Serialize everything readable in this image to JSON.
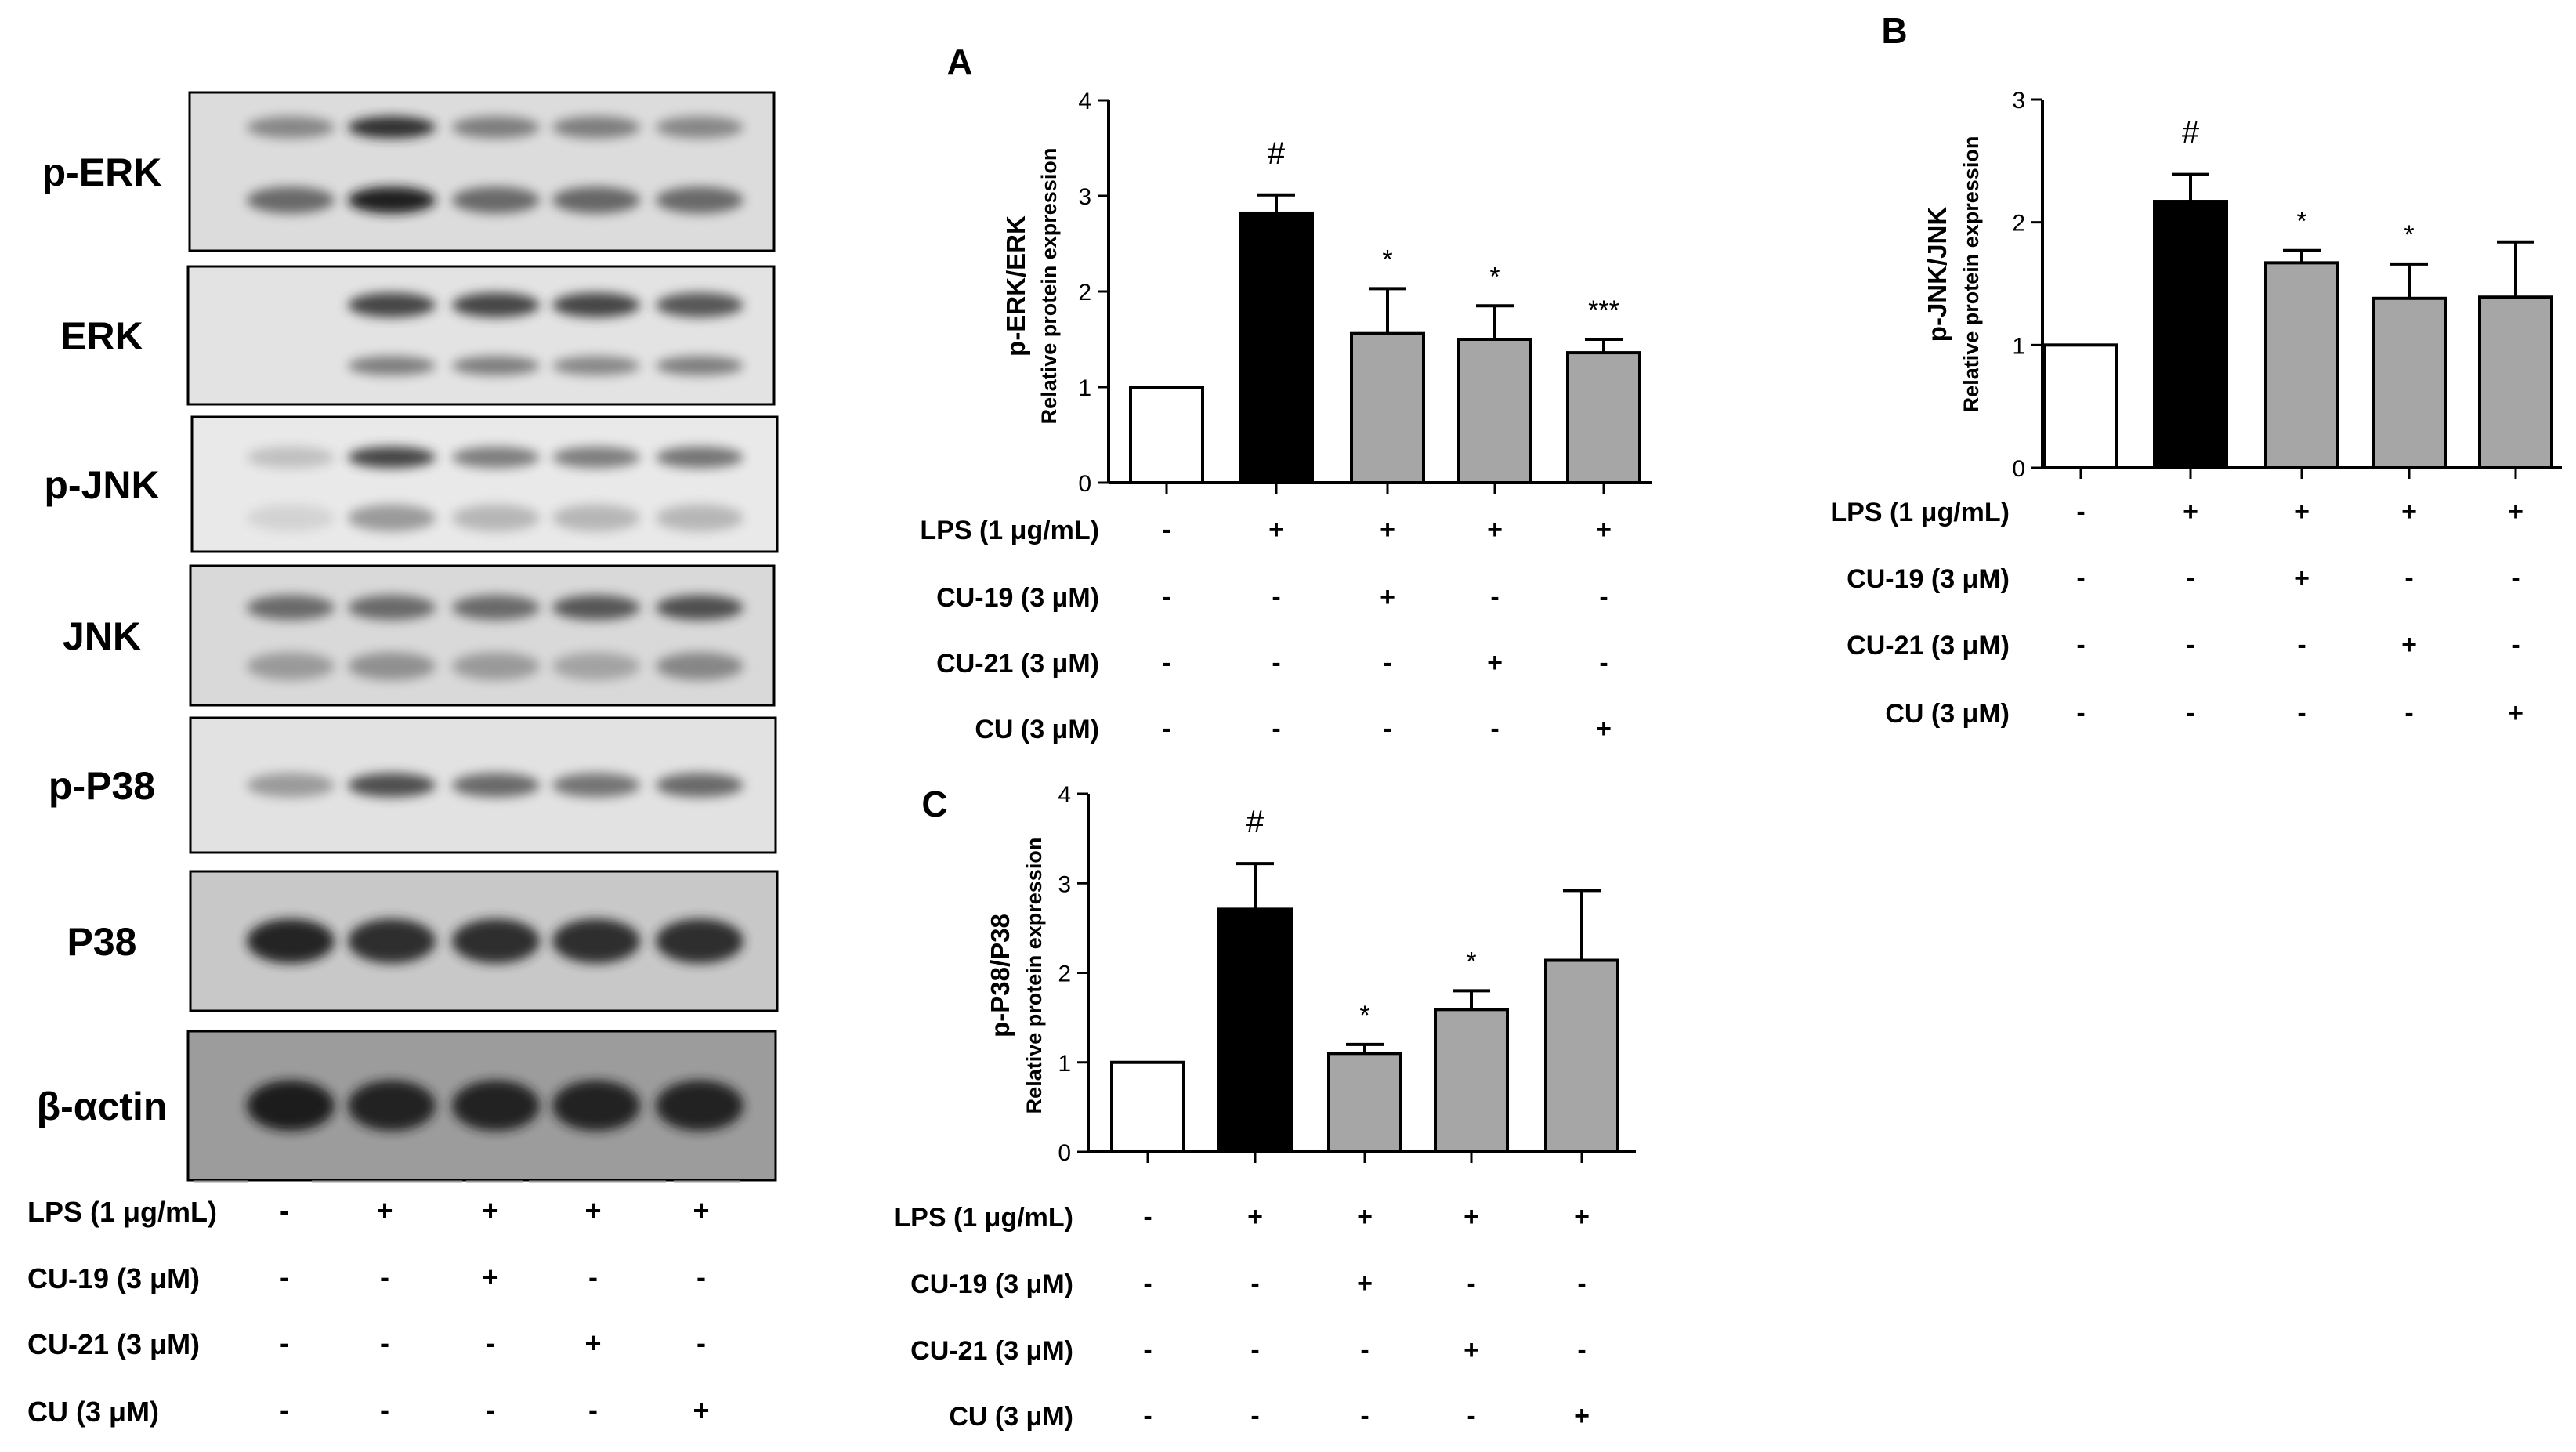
{
  "blot": {
    "labels": [
      "p-ERK",
      "ERK",
      "p-JNK",
      "JNK",
      "p-P38",
      "P38",
      "β-αctin"
    ],
    "panels": [
      {
        "tone": "#dcdcdc",
        "bands": [
          {
            "dy": -0.28,
            "h": 0.14,
            "i": [
              0.45,
              0.9,
              0.5,
              0.5,
              0.45
            ]
          },
          {
            "dy": 0.18,
            "h": 0.17,
            "i": [
              0.6,
              1.0,
              0.6,
              0.62,
              0.6
            ]
          }
        ]
      },
      {
        "tone": "#e3e3e3",
        "bands": [
          {
            "dy": -0.22,
            "h": 0.18,
            "i": [
              0.0,
              0.8,
              0.8,
              0.8,
              0.7
            ]
          },
          {
            "dy": 0.22,
            "h": 0.14,
            "i": [
              0.0,
              0.5,
              0.5,
              0.45,
              0.5
            ]
          }
        ]
      },
      {
        "tone": "#e9e9e9",
        "bands": [
          {
            "dy": -0.2,
            "h": 0.16,
            "i": [
              0.15,
              0.8,
              0.5,
              0.5,
              0.55
            ]
          },
          {
            "dy": 0.25,
            "h": 0.2,
            "i": [
              0.05,
              0.35,
              0.2,
              0.2,
              0.2
            ]
          }
        ]
      },
      {
        "tone": "#d9d9d9",
        "bands": [
          {
            "dy": -0.2,
            "h": 0.18,
            "i": [
              0.6,
              0.6,
              0.6,
              0.7,
              0.75
            ]
          },
          {
            "dy": 0.22,
            "h": 0.2,
            "i": [
              0.35,
              0.4,
              0.35,
              0.3,
              0.45
            ]
          }
        ]
      },
      {
        "tone": "#e2e2e2",
        "bands": [
          {
            "dy": 0.0,
            "h": 0.18,
            "i": [
              0.35,
              0.75,
              0.6,
              0.55,
              0.6
            ]
          }
        ]
      },
      {
        "tone": "#c8c8c8",
        "bands": [
          {
            "dy": 0.0,
            "h": 0.32,
            "i": [
              0.95,
              0.9,
              0.9,
              0.9,
              0.9
            ]
          }
        ]
      },
      {
        "tone": "#9c9c9c",
        "bands": [
          {
            "dy": 0.0,
            "h": 0.34,
            "i": [
              1.0,
              0.95,
              0.95,
              0.95,
              0.95
            ]
          }
        ]
      }
    ],
    "treatments": [
      {
        "label": "LPS (1 μg/mL)",
        "signs": [
          "-",
          "+",
          "+",
          "+",
          "+"
        ]
      },
      {
        "label": "CU-19 (3 μM)",
        "signs": [
          "-",
          "-",
          "+",
          "-",
          "-"
        ]
      },
      {
        "label": "CU-21 (3 μM)",
        "signs": [
          "-",
          "-",
          "-",
          "+",
          "-"
        ]
      },
      {
        "label": "CU (3 μM)",
        "signs": [
          "-",
          "-",
          "-",
          "-",
          "+"
        ]
      }
    ]
  },
  "colors": {
    "control": "#ffffff",
    "lps": "#000000",
    "treated": "#a6a6a6"
  },
  "chart_data": [
    {
      "type": "bar",
      "panel": "A",
      "ylabel": "p-ERK/ERK",
      "ylabel2": "Relative protein expression",
      "ylim": [
        0,
        4
      ],
      "yticks": [
        "0",
        "1",
        "2",
        "3",
        "4"
      ],
      "values": [
        1.0,
        2.82,
        1.56,
        1.5,
        1.36
      ],
      "errors": [
        0,
        0.19,
        0.47,
        0.35,
        0.14
      ],
      "annotations": [
        "",
        "#",
        "*",
        "*",
        "***"
      ],
      "treatments": [
        {
          "label": "LPS (1 μg/mL)",
          "signs": [
            "-",
            "+",
            "+",
            "+",
            "+"
          ]
        },
        {
          "label": "CU-19 (3 μM)",
          "signs": [
            "-",
            "-",
            "+",
            "-",
            "-"
          ]
        },
        {
          "label": "CU-21 (3 μM)",
          "signs": [
            "-",
            "-",
            "-",
            "+",
            "-"
          ]
        },
        {
          "label": "CU (3 μM)",
          "signs": [
            "-",
            "-",
            "-",
            "-",
            "+"
          ]
        }
      ],
      "grid": false
    },
    {
      "type": "bar",
      "panel": "B",
      "ylabel": "p-JNK/JNK",
      "ylabel2": "Relative protein expression",
      "ylim": [
        0,
        3
      ],
      "yticks": [
        "0",
        "1",
        "2",
        "3"
      ],
      "values": [
        1.0,
        2.17,
        1.67,
        1.38,
        1.39
      ],
      "errors": [
        0,
        0.22,
        0.1,
        0.28,
        0.45
      ],
      "annotations": [
        "",
        "#",
        "*",
        "*",
        ""
      ],
      "treatments": [
        {
          "label": "LPS (1 μg/mL)",
          "signs": [
            "-",
            "+",
            "+",
            "+",
            "+"
          ]
        },
        {
          "label": "CU-19 (3 μM)",
          "signs": [
            "-",
            "-",
            "+",
            "-",
            "-"
          ]
        },
        {
          "label": "CU-21 (3 μM)",
          "signs": [
            "-",
            "-",
            "-",
            "+",
            "-"
          ]
        },
        {
          "label": "CU (3 μM)",
          "signs": [
            "-",
            "-",
            "-",
            "-",
            "+"
          ]
        }
      ],
      "grid": false
    },
    {
      "type": "bar",
      "panel": "C",
      "ylabel": "p-P38/P38",
      "ylabel2": "Relative protein expression",
      "ylim": [
        0,
        4
      ],
      "yticks": [
        "0",
        "1",
        "2",
        "3",
        "4"
      ],
      "values": [
        1.0,
        2.71,
        1.1,
        1.59,
        2.14
      ],
      "errors": [
        0,
        0.51,
        0.1,
        0.21,
        0.78
      ],
      "annotations": [
        "",
        "#",
        "*",
        "*",
        ""
      ],
      "treatments": [
        {
          "label": "LPS (1 μg/mL)",
          "signs": [
            "-",
            "+",
            "+",
            "+",
            "+"
          ]
        },
        {
          "label": "CU-19 (3 μM)",
          "signs": [
            "-",
            "-",
            "+",
            "-",
            "-"
          ]
        },
        {
          "label": "CU-21 (3 μM)",
          "signs": [
            "-",
            "-",
            "-",
            "+",
            "-"
          ]
        },
        {
          "label": "CU (3 μM)",
          "signs": [
            "-",
            "-",
            "-",
            "-",
            "+"
          ]
        }
      ],
      "grid": false
    }
  ]
}
